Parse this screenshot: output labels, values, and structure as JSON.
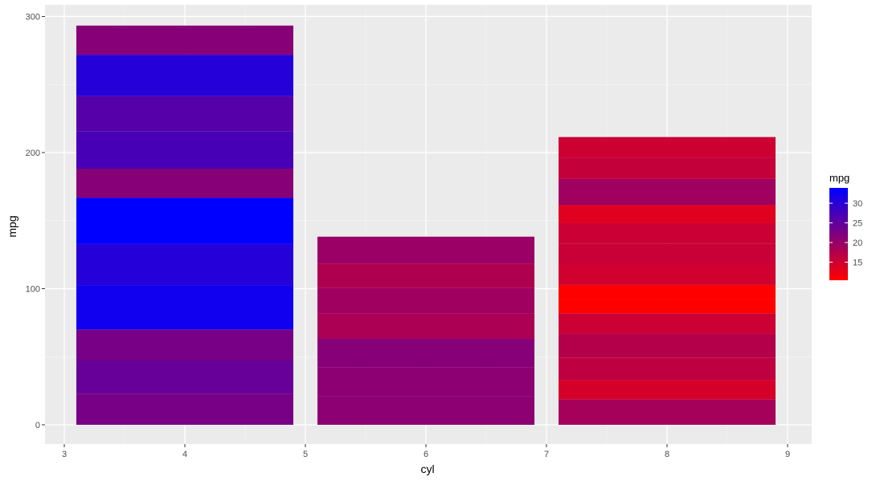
{
  "chart_data": {
    "type": "bar",
    "stacked": true,
    "xlabel": "cyl",
    "ylabel": "mpg",
    "xlim": [
      3,
      9
    ],
    "ylim": [
      0,
      300
    ],
    "x_ticks": [
      "3",
      "4",
      "5",
      "6",
      "7",
      "8",
      "9"
    ],
    "y_ticks": [
      "0",
      "100",
      "200",
      "300"
    ],
    "grid": true,
    "background": "#ebebeb",
    "bars": [
      {
        "x": 4,
        "segments": [
          22.8,
          24.4,
          22.8,
          32.4,
          30.4,
          33.9,
          21.5,
          27.3,
          26.0,
          30.4,
          21.4
        ]
      },
      {
        "x": 6,
        "segments": [
          21.0,
          21.0,
          21.4,
          18.1,
          19.2,
          17.8,
          19.7
        ]
      },
      {
        "x": 8,
        "segments": [
          18.7,
          14.3,
          16.4,
          17.3,
          15.2,
          10.4,
          10.4,
          14.7,
          15.5,
          15.2,
          13.3,
          19.2,
          15.8,
          15.0
        ]
      }
    ],
    "legend": {
      "title": "mpg",
      "position": "right",
      "type": "colorbar",
      "low_color": "#ff0000",
      "high_color": "#0000ff",
      "breaks": [
        "15",
        "20",
        "25",
        "30"
      ],
      "range": [
        10.4,
        33.9
      ]
    }
  }
}
